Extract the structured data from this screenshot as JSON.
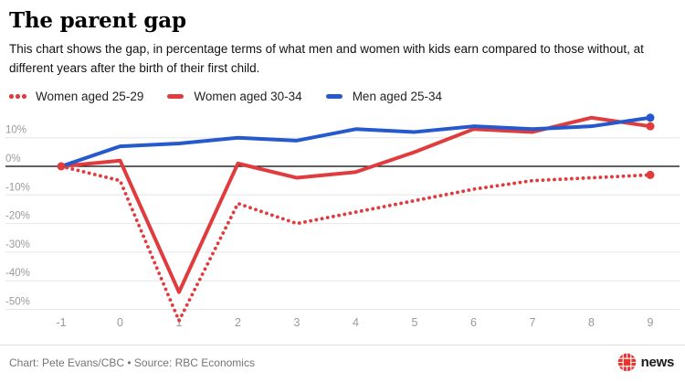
{
  "header": {
    "title": "The parent gap",
    "subtitle": "This chart shows the gap, in percentage terms of what men and women with kids earn compared to those without, at different years after the birth of their first child."
  },
  "chart_data": {
    "type": "line",
    "title": "The parent gap",
    "x": [
      -1,
      0,
      1,
      2,
      3,
      4,
      5,
      6,
      7,
      8,
      9
    ],
    "x_tick_labels": [
      "-1",
      "0",
      "1",
      "2",
      "3",
      "4",
      "5",
      "6",
      "7",
      "8",
      "9"
    ],
    "y_ticks": [
      {
        "label": "10%",
        "value": 10
      },
      {
        "label": "0%",
        "value": 0
      },
      {
        "label": "-10%",
        "value": -10
      },
      {
        "label": "-20%",
        "value": -20
      },
      {
        "label": "-30%",
        "value": -30
      },
      {
        "label": "-40%",
        "value": -40
      },
      {
        "label": "-50%",
        "value": -50
      }
    ],
    "ylim": [
      -57,
      21
    ],
    "grid": true,
    "zero_line": true,
    "legend_position": "top",
    "series": [
      {
        "name": "Women aged 25-29",
        "style": "dotted",
        "color": "#e03c3e",
        "values": [
          0,
          -5,
          -54,
          -13,
          -20,
          -16,
          -12,
          -8,
          -5,
          -4,
          -3
        ]
      },
      {
        "name": "Women aged 30-34",
        "style": "solid",
        "color": "#e03c3e",
        "values": [
          0,
          2,
          -44,
          1,
          -4,
          -2,
          5,
          13,
          12,
          17,
          14
        ]
      },
      {
        "name": "Men aged 25-34",
        "style": "solid",
        "color": "#2659cc",
        "values": [
          0,
          7,
          8,
          10,
          9,
          13,
          12,
          14,
          13,
          14,
          17
        ]
      }
    ]
  },
  "colors": {
    "red": "#e03c3e",
    "blue": "#2659cc",
    "grid": "#e6e6e6",
    "zero_line": "#000000",
    "axis_text": "#9a9a9a",
    "logo_red": "#e8342e"
  },
  "footer": {
    "credit": "Chart: Pete Evans/CBC • Source: RBC Economics",
    "brand": "news"
  }
}
